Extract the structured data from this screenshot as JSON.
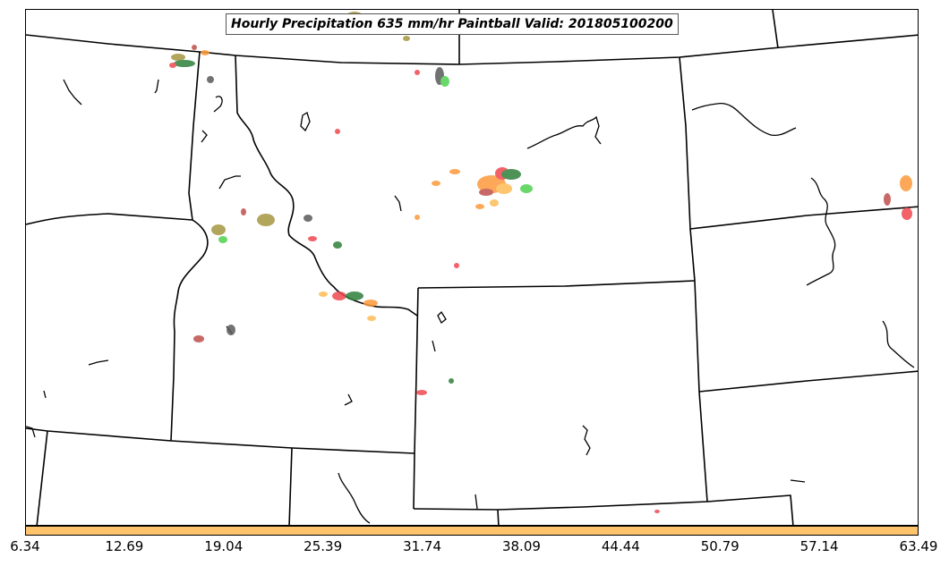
{
  "title": "Hourly Precipitation 635 mm/hr Paintball Valid: 201805100200",
  "colorbar": {
    "color": "#fec36b",
    "ticks": [
      "6.34",
      "12.69",
      "19.04",
      "25.39",
      "31.74",
      "38.09",
      "44.44",
      "50.79",
      "57.14",
      "63.49"
    ]
  },
  "palette": {
    "red": "#f0474f",
    "orange": "#fc9a3c",
    "light-orange": "#fdbb55",
    "green": "#4fd24f",
    "dark-green": "#2f7f3a",
    "olive": "#a59640",
    "gray": "#5a5a5a",
    "brown-red": "#c0504d"
  }
}
